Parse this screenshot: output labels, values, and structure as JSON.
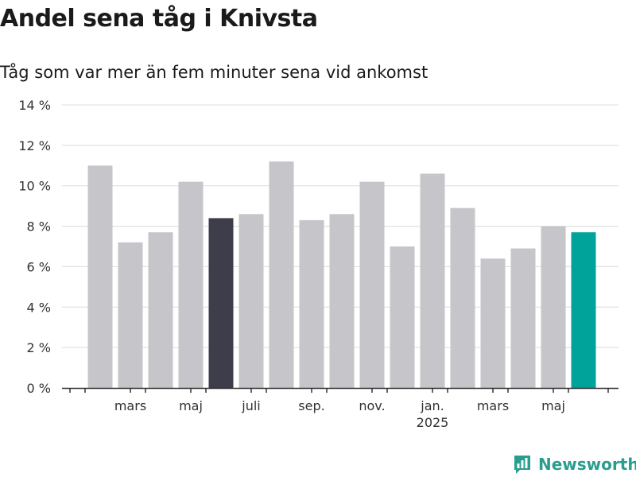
{
  "title": "Andel sena tåg i Knivsta",
  "subtitle": "Tåg som var mer än fem minuter sena vid ankomst",
  "brand": {
    "name": "Newsworthy",
    "icon": "newsworthy-logo-icon"
  },
  "colors": {
    "default": "#c6c5ca",
    "highlight_dark": "#3e3d4a",
    "highlight_accent": "#00a39a"
  },
  "chart_data": {
    "type": "bar",
    "title": "Andel sena tåg i Knivsta",
    "subtitle": "Tåg som var mer än fem minuter sena vid ankomst",
    "xlabel": "",
    "ylabel": "",
    "ylim": [
      0,
      14
    ],
    "yticks": [
      0,
      2,
      4,
      6,
      8,
      10,
      12,
      14
    ],
    "ytick_suffix": " %",
    "grid": true,
    "categories": [
      "2024-02",
      "2024-03",
      "2024-04",
      "2024-05",
      "2024-06",
      "2024-07",
      "2024-08",
      "2024-09",
      "2024-10",
      "2024-11",
      "2024-12",
      "2025-01",
      "2025-02",
      "2025-03",
      "2025-04",
      "2025-05",
      "2025-06"
    ],
    "values": [
      11.0,
      7.2,
      7.7,
      10.2,
      8.4,
      8.6,
      11.2,
      8.3,
      8.6,
      10.2,
      7.0,
      10.6,
      8.9,
      6.4,
      6.9,
      8.0,
      7.7
    ],
    "bar_colors": [
      "default",
      "default",
      "default",
      "default",
      "highlight_dark",
      "default",
      "default",
      "default",
      "default",
      "default",
      "default",
      "default",
      "default",
      "default",
      "default",
      "default",
      "highlight_accent"
    ],
    "xtick_labels": [
      {
        "index": 1,
        "label": "mars",
        "sublabel": ""
      },
      {
        "index": 3,
        "label": "maj",
        "sublabel": ""
      },
      {
        "index": 5,
        "label": "juli",
        "sublabel": ""
      },
      {
        "index": 7,
        "label": "sep.",
        "sublabel": ""
      },
      {
        "index": 9,
        "label": "nov.",
        "sublabel": ""
      },
      {
        "index": 11,
        "label": "jan.",
        "sublabel": "2025"
      },
      {
        "index": 13,
        "label": "mars",
        "sublabel": ""
      },
      {
        "index": 15,
        "label": "maj",
        "sublabel": ""
      }
    ]
  }
}
